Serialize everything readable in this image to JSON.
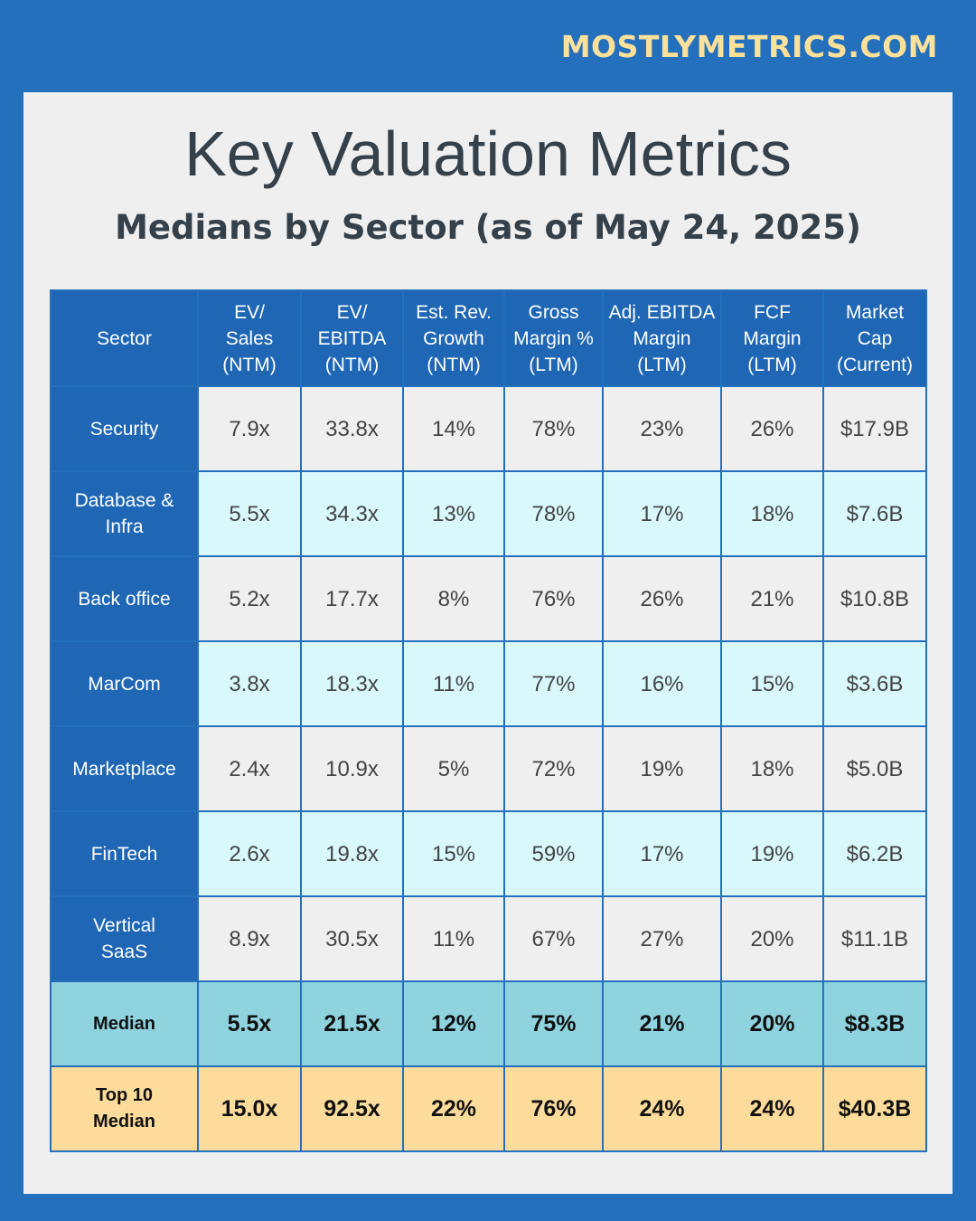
{
  "brand": "MOSTLYMETRICS.COM",
  "title": "Key Valuation Metrics",
  "subtitle": "Medians by Sector (as of  May 24, 2025)",
  "table": {
    "header": [
      "Sector",
      "EV/\nSales\n(NTM)",
      "EV/\nEBITDA\n(NTM)",
      "Est. Rev.\nGrowth\n(NTM)",
      "Gross\nMargin %\n(LTM)",
      "Adj. EBITDA\nMargin\n(LTM)",
      "FCF\nMargin\n(LTM)",
      "Market\nCap\n(Current)"
    ],
    "rows": [
      [
        "Security",
        "7.9x",
        "33.8x",
        "14%",
        "78%",
        "23%",
        "26%",
        "$17.9B"
      ],
      [
        "Database &\nInfra",
        "5.5x",
        "34.3x",
        "13%",
        "78%",
        "17%",
        "18%",
        "$7.6B"
      ],
      [
        "Back office",
        "5.2x",
        "17.7x",
        "8%",
        "76%",
        "26%",
        "21%",
        "$10.8B"
      ],
      [
        "MarCom",
        "3.8x",
        "18.3x",
        "11%",
        "77%",
        "16%",
        "15%",
        "$3.6B"
      ],
      [
        "Marketplace",
        "2.4x",
        "10.9x",
        "5%",
        "72%",
        "19%",
        "18%",
        "$5.0B"
      ],
      [
        "FinTech",
        "2.6x",
        "19.8x",
        "15%",
        "59%",
        "17%",
        "19%",
        "$6.2B"
      ],
      [
        "Vertical\nSaaS",
        "8.9x",
        "30.5x",
        "11%",
        "67%",
        "27%",
        "20%",
        "$11.1B"
      ]
    ],
    "median": [
      "Median",
      "5.5x",
      "21.5x",
      "12%",
      "75%",
      "21%",
      "20%",
      "$8.3B"
    ],
    "top10_median": [
      "Top 10\nMedian",
      "15.0x",
      "92.5x",
      "22%",
      "76%",
      "24%",
      "24%",
      "$40.3B"
    ]
  }
}
